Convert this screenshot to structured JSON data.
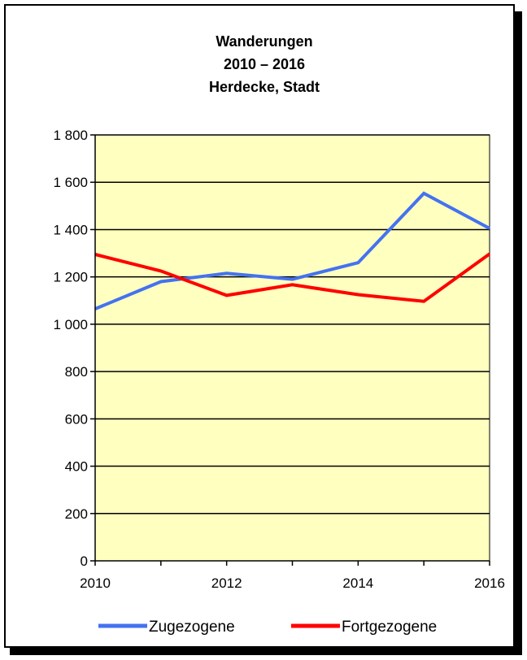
{
  "chart_data": {
    "type": "line",
    "title": [
      "Wanderungen",
      "2010 – 2016",
      "Herdecke, Stadt"
    ],
    "x": [
      2010,
      2011,
      2012,
      2013,
      2014,
      2015,
      2016
    ],
    "x_tick_values": [
      2010,
      2012,
      2014,
      2016
    ],
    "x_tick_labels": [
      "2010",
      "2012",
      "2014",
      "2016"
    ],
    "xlim": [
      2010,
      2016
    ],
    "ylim": [
      0,
      1800
    ],
    "y_tick_values": [
      0,
      200,
      400,
      600,
      800,
      1000,
      1200,
      1400,
      1600,
      1800
    ],
    "y_tick_labels": [
      "0",
      "200",
      "400",
      "600",
      "800",
      "1 000",
      "1 200",
      "1 400",
      "1 600",
      "1 800"
    ],
    "grid": "horizontal",
    "plot_background": "#ffffc0",
    "legend_position": "bottom",
    "series": [
      {
        "name": "Zugezogene",
        "color": "#4472f0",
        "values": [
          1065,
          1180,
          1215,
          1190,
          1260,
          1553,
          1405
        ]
      },
      {
        "name": "Fortgezogene",
        "color": "#ff0000",
        "values": [
          1295,
          1225,
          1122,
          1167,
          1125,
          1097,
          1297
        ]
      }
    ]
  }
}
